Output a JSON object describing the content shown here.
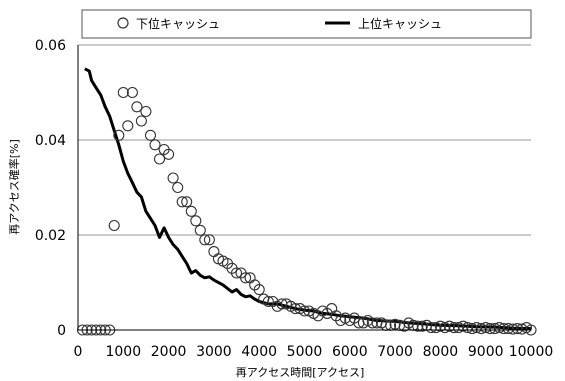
{
  "chart_data": {
    "type": "scatter",
    "xlabel": "再アクセス時間[アクセス]",
    "ylabel": "再アクセス確率[%]",
    "xlim": [
      0,
      10000
    ],
    "ylim": [
      0,
      0.06
    ],
    "x_ticks": [
      "0",
      "1000",
      "2000",
      "3000",
      "4000",
      "5000",
      "6000",
      "7000",
      "8000",
      "9000",
      "10000"
    ],
    "y_ticks": [
      "0",
      "0.02",
      "0.04",
      "0.06"
    ],
    "grid": "horizontal",
    "legend_position": "top",
    "series": [
      {
        "name": "下位キャッシュ",
        "kind": "markers",
        "marker": "open-circle",
        "points": [
          [
            100,
            0
          ],
          [
            200,
            0
          ],
          [
            300,
            0
          ],
          [
            400,
            0
          ],
          [
            500,
            0
          ],
          [
            600,
            0
          ],
          [
            700,
            0
          ],
          [
            800,
            0.022
          ],
          [
            900,
            0.041
          ],
          [
            1000,
            0.05
          ],
          [
            1100,
            0.043
          ],
          [
            1200,
            0.05
          ],
          [
            1300,
            0.047
          ],
          [
            1400,
            0.044
          ],
          [
            1500,
            0.046
          ],
          [
            1600,
            0.041
          ],
          [
            1700,
            0.039
          ],
          [
            1800,
            0.036
          ],
          [
            1900,
            0.038
          ],
          [
            2000,
            0.037
          ],
          [
            2100,
            0.032
          ],
          [
            2200,
            0.03
          ],
          [
            2300,
            0.027
          ],
          [
            2400,
            0.027
          ],
          [
            2500,
            0.025
          ],
          [
            2600,
            0.023
          ],
          [
            2700,
            0.021
          ],
          [
            2800,
            0.019
          ],
          [
            2900,
            0.019
          ],
          [
            3000,
            0.0165
          ],
          [
            3100,
            0.015
          ],
          [
            3200,
            0.0145
          ],
          [
            3300,
            0.014
          ],
          [
            3400,
            0.013
          ],
          [
            3500,
            0.012
          ],
          [
            3600,
            0.012
          ],
          [
            3700,
            0.011
          ],
          [
            3800,
            0.011
          ],
          [
            3900,
            0.0095
          ],
          [
            4000,
            0.0085
          ],
          [
            4100,
            0.0065
          ],
          [
            4200,
            0.006
          ],
          [
            4300,
            0.006
          ],
          [
            4400,
            0.005
          ],
          [
            4500,
            0.0055
          ],
          [
            4600,
            0.0055
          ],
          [
            4700,
            0.005
          ],
          [
            4800,
            0.0045
          ],
          [
            4900,
            0.0045
          ],
          [
            5000,
            0.004
          ],
          [
            5100,
            0.004
          ],
          [
            5200,
            0.0035
          ],
          [
            5300,
            0.003
          ],
          [
            5400,
            0.004
          ],
          [
            5500,
            0.0035
          ],
          [
            5600,
            0.0045
          ],
          [
            5700,
            0.003
          ],
          [
            5800,
            0.002
          ],
          [
            5900,
            0.0025
          ],
          [
            6000,
            0.002
          ],
          [
            6100,
            0.0025
          ],
          [
            6200,
            0.0015
          ],
          [
            6300,
            0.0015
          ],
          [
            6400,
            0.002
          ],
          [
            6500,
            0.0015
          ],
          [
            6600,
            0.0015
          ],
          [
            6700,
            0.0015
          ],
          [
            6800,
            0.001
          ],
          [
            6900,
            0.001
          ],
          [
            7000,
            0.0012
          ],
          [
            7100,
            0.001
          ],
          [
            7200,
            0.0008
          ],
          [
            7300,
            0.0015
          ],
          [
            7400,
            0.001
          ],
          [
            7500,
            0.0008
          ],
          [
            7600,
            0.0008
          ],
          [
            7700,
            0.001
          ],
          [
            7800,
            0.0005
          ],
          [
            7900,
            0.0005
          ],
          [
            8000,
            0.0008
          ],
          [
            8100,
            0.0005
          ],
          [
            8200,
            0.0008
          ],
          [
            8300,
            0.0005
          ],
          [
            8400,
            0.0005
          ],
          [
            8500,
            0.0008
          ],
          [
            8600,
            0.0005
          ],
          [
            8700,
            0.0003
          ],
          [
            8800,
            0.0005
          ],
          [
            8900,
            0.0003
          ],
          [
            9000,
            0.0005
          ],
          [
            9100,
            0.0003
          ],
          [
            9200,
            0.0003
          ],
          [
            9300,
            0.0005
          ],
          [
            9400,
            0.0003
          ],
          [
            9500,
            0.0003
          ],
          [
            9600,
            0.0002
          ],
          [
            9700,
            0.0003
          ],
          [
            9800,
            0.0002
          ],
          [
            9900,
            0.0005
          ],
          [
            10000,
            0
          ]
        ]
      },
      {
        "name": "上位キャッシュ",
        "kind": "line",
        "points": [
          [
            150,
            0.055
          ],
          [
            250,
            0.0545
          ],
          [
            300,
            0.0525
          ],
          [
            400,
            0.051
          ],
          [
            500,
            0.0495
          ],
          [
            600,
            0.047
          ],
          [
            700,
            0.045
          ],
          [
            800,
            0.042
          ],
          [
            900,
            0.039
          ],
          [
            1000,
            0.0355
          ],
          [
            1100,
            0.033
          ],
          [
            1200,
            0.031
          ],
          [
            1300,
            0.029
          ],
          [
            1400,
            0.028
          ],
          [
            1500,
            0.025
          ],
          [
            1600,
            0.0235
          ],
          [
            1700,
            0.022
          ],
          [
            1800,
            0.0195
          ],
          [
            1900,
            0.0215
          ],
          [
            2000,
            0.0195
          ],
          [
            2100,
            0.018
          ],
          [
            2200,
            0.017
          ],
          [
            2300,
            0.0155
          ],
          [
            2400,
            0.014
          ],
          [
            2500,
            0.012
          ],
          [
            2600,
            0.0125
          ],
          [
            2700,
            0.0115
          ],
          [
            2800,
            0.011
          ],
          [
            2900,
            0.0112
          ],
          [
            3000,
            0.0105
          ],
          [
            3200,
            0.0095
          ],
          [
            3400,
            0.008
          ],
          [
            3500,
            0.0085
          ],
          [
            3600,
            0.0075
          ],
          [
            3700,
            0.007
          ],
          [
            3800,
            0.0072
          ],
          [
            3900,
            0.0065
          ],
          [
            4000,
            0.006
          ],
          [
            4200,
            0.0055
          ],
          [
            4400,
            0.0055
          ],
          [
            4600,
            0.005
          ],
          [
            4800,
            0.0045
          ],
          [
            5000,
            0.0042
          ],
          [
            5200,
            0.004
          ],
          [
            5400,
            0.0035
          ],
          [
            5600,
            0.0033
          ],
          [
            5800,
            0.003
          ],
          [
            6000,
            0.0028
          ],
          [
            6300,
            0.0025
          ],
          [
            6600,
            0.002
          ],
          [
            7000,
            0.0018
          ],
          [
            7300,
            0.0015
          ],
          [
            7600,
            0.0013
          ],
          [
            8000,
            0.001
          ],
          [
            8400,
            0.0009
          ],
          [
            8800,
            0.0007
          ],
          [
            9200,
            0.0006
          ],
          [
            9600,
            0.0004
          ],
          [
            10000,
            0.0003
          ]
        ]
      }
    ]
  }
}
